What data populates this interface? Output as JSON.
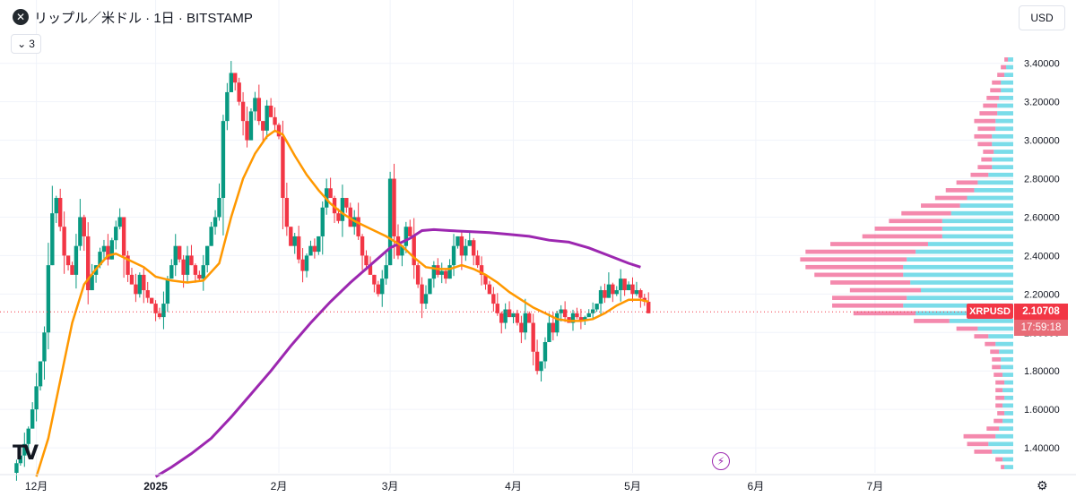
{
  "header": {
    "logo_icon": "xrp-logo-icon",
    "title": "リップル／米ドル · 1日 · BITSTAMP",
    "indicators_count": "3",
    "currency": "USD"
  },
  "last_price": {
    "symbol": "XRPUSD",
    "price": "2.10708",
    "countdown": "17:59:18",
    "color": "#f23645"
  },
  "chart_data": {
    "type": "candlestick",
    "yaxis": {
      "ticks": [
        "1.40000",
        "1.60000",
        "1.80000",
        "2.00000",
        "2.20000",
        "2.40000",
        "2.60000",
        "2.80000",
        "3.00000",
        "3.20000",
        "3.40000"
      ],
      "tick_values": [
        1.4,
        1.6,
        1.8,
        2.0,
        2.2,
        2.4,
        2.6,
        2.8,
        3.0,
        3.2,
        3.4
      ],
      "range": [
        1.27,
        3.45
      ]
    },
    "xaxis": {
      "range_days": [
        0,
        245
      ],
      "ticks": [
        {
          "label": "12月",
          "day": 6
        },
        {
          "label": "2025",
          "day": 36
        },
        {
          "label": "2月",
          "day": 67
        },
        {
          "label": "3月",
          "day": 95
        },
        {
          "label": "4月",
          "day": 126
        },
        {
          "label": "5月",
          "day": 156
        },
        {
          "label": "6月",
          "day": 187
        },
        {
          "label": "7月",
          "day": 217
        }
      ]
    },
    "colors": {
      "up": "#089981",
      "down": "#f23645",
      "ma_short": "#ff9800",
      "ma_long": "#9c27b0",
      "vp_up": "#4dd0e1",
      "vp_down": "#f06292",
      "grid": "#f0f3fa"
    },
    "anchors": [
      [
        0,
        1.27
      ],
      [
        1,
        1.32
      ],
      [
        2,
        1.36
      ],
      [
        3,
        1.42
      ],
      [
        4,
        1.5
      ],
      [
        5,
        1.6
      ],
      [
        6,
        1.72
      ],
      [
        7,
        1.85
      ],
      [
        8,
        2.0
      ],
      [
        9,
        2.35
      ],
      [
        10,
        2.62
      ],
      [
        11,
        2.7
      ],
      [
        12,
        2.55
      ],
      [
        13,
        2.4
      ],
      [
        14,
        2.35
      ],
      [
        15,
        2.3
      ],
      [
        16,
        2.45
      ],
      [
        17,
        2.6
      ],
      [
        18,
        2.5
      ],
      [
        19,
        2.22
      ],
      [
        20,
        2.3
      ],
      [
        21,
        2.35
      ],
      [
        22,
        2.42
      ],
      [
        23,
        2.45
      ],
      [
        24,
        2.38
      ],
      [
        25,
        2.48
      ],
      [
        26,
        2.55
      ],
      [
        27,
        2.6
      ],
      [
        28,
        2.4
      ],
      [
        29,
        2.3
      ],
      [
        30,
        2.25
      ],
      [
        31,
        2.2
      ],
      [
        32,
        2.3
      ],
      [
        33,
        2.22
      ],
      [
        34,
        2.18
      ],
      [
        35,
        2.15
      ],
      [
        36,
        2.1
      ],
      [
        37,
        2.08
      ],
      [
        38,
        2.15
      ],
      [
        39,
        2.28
      ],
      [
        40,
        2.35
      ],
      [
        41,
        2.45
      ],
      [
        42,
        2.38
      ],
      [
        43,
        2.3
      ],
      [
        44,
        2.4
      ],
      [
        45,
        2.35
      ],
      [
        46,
        2.3
      ],
      [
        47,
        2.28
      ],
      [
        48,
        2.35
      ],
      [
        49,
        2.45
      ],
      [
        50,
        2.55
      ],
      [
        51,
        2.6
      ],
      [
        52,
        2.7
      ],
      [
        53,
        3.1
      ],
      [
        54,
        3.25
      ],
      [
        55,
        3.35
      ],
      [
        56,
        3.3
      ],
      [
        57,
        3.2
      ],
      [
        58,
        3.1
      ],
      [
        59,
        3.0
      ],
      [
        60,
        3.15
      ],
      [
        61,
        3.22
      ],
      [
        62,
        3.1
      ],
      [
        63,
        3.05
      ],
      [
        64,
        3.18
      ],
      [
        65,
        3.12
      ],
      [
        66,
        3.08
      ],
      [
        67,
        3.02
      ],
      [
        68,
        2.7
      ],
      [
        69,
        2.55
      ],
      [
        70,
        2.45
      ],
      [
        71,
        2.5
      ],
      [
        72,
        2.38
      ],
      [
        73,
        2.32
      ],
      [
        74,
        2.4
      ],
      [
        75,
        2.45
      ],
      [
        76,
        2.42
      ],
      [
        77,
        2.5
      ],
      [
        78,
        2.65
      ],
      [
        79,
        2.75
      ],
      [
        80,
        2.7
      ],
      [
        81,
        2.62
      ],
      [
        82,
        2.58
      ],
      [
        83,
        2.7
      ],
      [
        84,
        2.65
      ],
      [
        85,
        2.55
      ],
      [
        86,
        2.6
      ],
      [
        87,
        2.5
      ],
      [
        88,
        2.4
      ],
      [
        89,
        2.35
      ],
      [
        90,
        2.3
      ],
      [
        91,
        2.25
      ],
      [
        92,
        2.2
      ],
      [
        93,
        2.28
      ],
      [
        94,
        2.35
      ],
      [
        95,
        2.8
      ],
      [
        96,
        2.5
      ],
      [
        97,
        2.4
      ],
      [
        98,
        2.45
      ],
      [
        99,
        2.55
      ],
      [
        100,
        2.5
      ],
      [
        101,
        2.35
      ],
      [
        102,
        2.25
      ],
      [
        103,
        2.15
      ],
      [
        104,
        2.2
      ],
      [
        105,
        2.28
      ],
      [
        106,
        2.35
      ],
      [
        107,
        2.3
      ],
      [
        108,
        2.32
      ],
      [
        109,
        2.28
      ],
      [
        110,
        2.35
      ],
      [
        111,
        2.45
      ],
      [
        112,
        2.5
      ],
      [
        113,
        2.4
      ],
      [
        114,
        2.45
      ],
      [
        115,
        2.48
      ],
      [
        116,
        2.4
      ],
      [
        117,
        2.35
      ],
      [
        118,
        2.3
      ],
      [
        119,
        2.25
      ],
      [
        120,
        2.2
      ],
      [
        121,
        2.15
      ],
      [
        122,
        2.1
      ],
      [
        123,
        2.05
      ],
      [
        124,
        2.12
      ],
      [
        125,
        2.08
      ],
      [
        126,
        2.1
      ],
      [
        127,
        2.05
      ],
      [
        128,
        2.0
      ],
      [
        129,
        2.1
      ],
      [
        130,
        2.05
      ],
      [
        131,
        1.9
      ],
      [
        132,
        1.8
      ],
      [
        133,
        1.85
      ],
      [
        134,
        1.95
      ],
      [
        135,
        2.05
      ],
      [
        136,
        2.0
      ],
      [
        137,
        2.1
      ],
      [
        138,
        2.12
      ],
      [
        139,
        2.08
      ],
      [
        140,
        2.05
      ],
      [
        141,
        2.1
      ],
      [
        142,
        2.08
      ],
      [
        143,
        2.06
      ],
      [
        144,
        2.08
      ],
      [
        145,
        2.1
      ],
      [
        146,
        2.12
      ],
      [
        147,
        2.15
      ],
      [
        148,
        2.22
      ],
      [
        149,
        2.18
      ],
      [
        150,
        2.25
      ],
      [
        151,
        2.2
      ],
      [
        152,
        2.22
      ],
      [
        153,
        2.28
      ],
      [
        154,
        2.22
      ],
      [
        155,
        2.25
      ],
      [
        156,
        2.2
      ],
      [
        157,
        2.22
      ],
      [
        158,
        2.18
      ],
      [
        159,
        2.16
      ],
      [
        160,
        2.1
      ]
    ],
    "ma_short": {
      "period_days": 20,
      "points": [
        [
          6,
          1.25
        ],
        [
          9,
          1.45
        ],
        [
          12,
          1.75
        ],
        [
          15,
          2.05
        ],
        [
          18,
          2.25
        ],
        [
          21,
          2.33
        ],
        [
          24,
          2.4
        ],
        [
          26,
          2.41
        ],
        [
          29,
          2.38
        ],
        [
          33,
          2.34
        ],
        [
          36,
          2.29
        ],
        [
          40,
          2.27
        ],
        [
          44,
          2.26
        ],
        [
          48,
          2.27
        ],
        [
          52,
          2.36
        ],
        [
          55,
          2.6
        ],
        [
          58,
          2.8
        ],
        [
          61,
          2.93
        ],
        [
          64,
          3.02
        ],
        [
          66,
          3.05
        ],
        [
          68,
          3.03
        ],
        [
          71,
          2.92
        ],
        [
          74,
          2.82
        ],
        [
          77,
          2.74
        ],
        [
          80,
          2.67
        ],
        [
          83,
          2.62
        ],
        [
          86,
          2.58
        ],
        [
          90,
          2.54
        ],
        [
          94,
          2.5
        ],
        [
          98,
          2.45
        ],
        [
          101,
          2.39
        ],
        [
          104,
          2.34
        ],
        [
          107,
          2.33
        ],
        [
          110,
          2.33
        ],
        [
          113,
          2.35
        ],
        [
          116,
          2.33
        ],
        [
          119,
          2.3
        ],
        [
          122,
          2.26
        ],
        [
          125,
          2.21
        ],
        [
          128,
          2.17
        ],
        [
          131,
          2.13
        ],
        [
          134,
          2.1
        ],
        [
          137,
          2.07
        ],
        [
          140,
          2.06
        ],
        [
          143,
          2.06
        ],
        [
          146,
          2.07
        ],
        [
          149,
          2.1
        ],
        [
          152,
          2.14
        ],
        [
          155,
          2.17
        ],
        [
          158,
          2.17
        ],
        [
          160,
          2.16
        ]
      ]
    },
    "ma_long": {
      "period_days": 200,
      "points": [
        [
          36,
          1.25
        ],
        [
          40,
          1.3
        ],
        [
          45,
          1.37
        ],
        [
          50,
          1.45
        ],
        [
          55,
          1.56
        ],
        [
          60,
          1.68
        ],
        [
          65,
          1.8
        ],
        [
          70,
          1.93
        ],
        [
          75,
          2.05
        ],
        [
          80,
          2.16
        ],
        [
          85,
          2.26
        ],
        [
          90,
          2.35
        ],
        [
          95,
          2.44
        ],
        [
          100,
          2.49
        ],
        [
          103,
          2.53
        ],
        [
          106,
          2.535
        ],
        [
          110,
          2.53
        ],
        [
          115,
          2.525
        ],
        [
          120,
          2.52
        ],
        [
          125,
          2.51
        ],
        [
          130,
          2.5
        ],
        [
          135,
          2.48
        ],
        [
          140,
          2.47
        ],
        [
          145,
          2.44
        ],
        [
          150,
          2.4
        ],
        [
          155,
          2.36
        ],
        [
          158,
          2.34
        ]
      ]
    },
    "volume_profile": {
      "side": "right",
      "bins": [
        [
          1.3,
          0.05,
          0.02
        ],
        [
          1.34,
          0.06,
          0.04
        ],
        [
          1.38,
          0.12,
          0.1
        ],
        [
          1.42,
          0.14,
          0.12
        ],
        [
          1.46,
          0.1,
          0.18
        ],
        [
          1.5,
          0.08,
          0.07
        ],
        [
          1.54,
          0.06,
          0.05
        ],
        [
          1.58,
          0.05,
          0.04
        ],
        [
          1.62,
          0.06,
          0.04
        ],
        [
          1.66,
          0.05,
          0.05
        ],
        [
          1.7,
          0.06,
          0.04
        ],
        [
          1.74,
          0.05,
          0.05
        ],
        [
          1.78,
          0.06,
          0.05
        ],
        [
          1.82,
          0.07,
          0.05
        ],
        [
          1.86,
          0.07,
          0.05
        ],
        [
          1.9,
          0.08,
          0.05
        ],
        [
          1.94,
          0.1,
          0.06
        ],
        [
          1.98,
          0.14,
          0.08
        ],
        [
          2.02,
          0.2,
          0.12
        ],
        [
          2.06,
          0.36,
          0.2
        ],
        [
          2.1,
          0.55,
          0.35
        ],
        [
          2.14,
          0.62,
          0.4
        ],
        [
          2.18,
          0.6,
          0.42
        ],
        [
          2.22,
          0.52,
          0.4
        ],
        [
          2.26,
          0.58,
          0.45
        ],
        [
          2.3,
          0.62,
          0.5
        ],
        [
          2.34,
          0.62,
          0.55
        ],
        [
          2.38,
          0.6,
          0.6
        ],
        [
          2.42,
          0.55,
          0.62
        ],
        [
          2.46,
          0.48,
          0.55
        ],
        [
          2.5,
          0.4,
          0.45
        ],
        [
          2.54,
          0.4,
          0.38
        ],
        [
          2.58,
          0.4,
          0.3
        ],
        [
          2.62,
          0.35,
          0.28
        ],
        [
          2.66,
          0.3,
          0.22
        ],
        [
          2.7,
          0.26,
          0.18
        ],
        [
          2.74,
          0.22,
          0.16
        ],
        [
          2.78,
          0.2,
          0.12
        ],
        [
          2.82,
          0.14,
          0.1
        ],
        [
          2.86,
          0.12,
          0.08
        ],
        [
          2.9,
          0.12,
          0.06
        ],
        [
          2.94,
          0.11,
          0.06
        ],
        [
          2.98,
          0.12,
          0.08
        ],
        [
          3.02,
          0.12,
          0.1
        ],
        [
          3.06,
          0.1,
          0.1
        ],
        [
          3.1,
          0.1,
          0.12
        ],
        [
          3.14,
          0.09,
          0.1
        ],
        [
          3.18,
          0.09,
          0.08
        ],
        [
          3.22,
          0.08,
          0.07
        ],
        [
          3.26,
          0.07,
          0.06
        ],
        [
          3.3,
          0.07,
          0.05
        ],
        [
          3.34,
          0.05,
          0.04
        ],
        [
          3.38,
          0.04,
          0.03
        ],
        [
          3.42,
          0.03,
          0.02
        ]
      ]
    }
  },
  "footer": {
    "tv_logo": "TV",
    "lightning_icon": "⚡",
    "settings_icon": "⚙"
  }
}
